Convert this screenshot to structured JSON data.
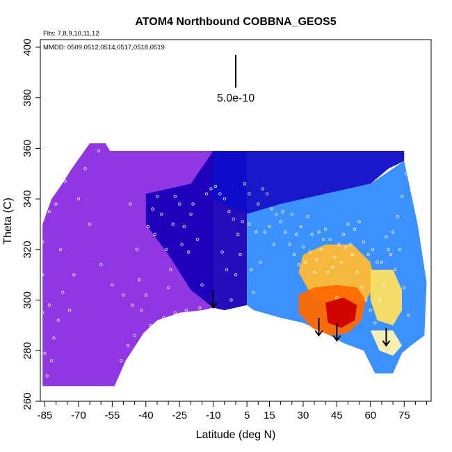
{
  "chart_data": {
    "type": "heatmap",
    "title": "ATOM4 Northbound COBBNA_GEOS5",
    "subtitle_flights": "Flts: 7,8,9,10,11,12",
    "subtitle_dates": "MMDD: 0509,0512,0514,0517,0518,0519",
    "xlabel": "Latitude (deg N)",
    "ylabel": "Theta (C)",
    "xlim": [
      -87,
      87
    ],
    "ylim": [
      260,
      403
    ],
    "x_ticks": [
      -85,
      -70,
      -55,
      -40,
      -25,
      -10,
      5,
      15,
      30,
      45,
      60,
      75
    ],
    "x_tick_labels": [
      "-85",
      "-70",
      "-55",
      "-40",
      "-25",
      "-10",
      "5",
      "15",
      "30",
      "45",
      "60",
      "75"
    ],
    "x_minor_ticks": [
      -80,
      -75,
      -65,
      -60,
      -50,
      -45,
      -35,
      -30,
      -20,
      -15,
      -5,
      0,
      10,
      20,
      25,
      35,
      40,
      50,
      55,
      65,
      70,
      80,
      85
    ],
    "y_ticks": [
      260,
      280,
      300,
      320,
      340,
      360,
      380,
      400
    ],
    "y_tick_labels": [
      "260",
      "280",
      "300",
      "320",
      "340",
      "360",
      "380",
      "400"
    ],
    "scale_bar": {
      "label": "5.0e-10",
      "x": 0,
      "y_bottom": 384,
      "y_top": 397
    },
    "grid": false,
    "colors": {
      "low": "#8a2be2",
      "mid_low": "#0000bb",
      "mid": "#2f8bff",
      "mid_high": "#ffd000",
      "high": "#d00000"
    },
    "field_regions": [
      {
        "name": "southern-background",
        "points": [
          [
            -86,
            330
          ],
          [
            -82,
            340
          ],
          [
            -78,
            345
          ],
          [
            -73,
            352
          ],
          [
            -65,
            362
          ],
          [
            -58,
            362
          ],
          [
            -56,
            359
          ],
          [
            -10,
            359
          ],
          [
            -10,
            297
          ],
          [
            -15,
            296
          ],
          [
            -25,
            295
          ],
          [
            -35,
            292
          ],
          [
            -41,
            287
          ],
          [
            -49,
            276
          ],
          [
            -54,
            266
          ],
          [
            -86,
            266
          ]
        ],
        "color": "#8a2be2"
      },
      {
        "name": "tropical-blue-core",
        "points": [
          [
            -40,
            342
          ],
          [
            -20,
            346
          ],
          [
            -10,
            359
          ],
          [
            5,
            359
          ],
          [
            5,
            298
          ],
          [
            -5,
            296
          ],
          [
            -10,
            297
          ],
          [
            -20,
            304
          ],
          [
            -30,
            318
          ],
          [
            -40,
            330
          ]
        ],
        "color": "#1a00b8"
      },
      {
        "name": "deep-blue-upper",
        "points": [
          [
            -10,
            359
          ],
          [
            75,
            359
          ],
          [
            75,
            355
          ],
          [
            68,
            352
          ],
          [
            60,
            346
          ],
          [
            40,
            342
          ],
          [
            20,
            338
          ],
          [
            5,
            334
          ],
          [
            -10,
            340
          ]
        ],
        "color": "#0d0dc8"
      },
      {
        "name": "northern-blue",
        "points": [
          [
            5,
            334
          ],
          [
            20,
            338
          ],
          [
            40,
            342
          ],
          [
            60,
            346
          ],
          [
            75,
            355
          ],
          [
            81,
            330
          ],
          [
            85,
            307
          ],
          [
            84,
            286
          ],
          [
            78,
            282
          ],
          [
            74,
            279
          ],
          [
            70,
            271
          ],
          [
            62,
            271
          ],
          [
            57,
            280
          ],
          [
            48,
            283
          ],
          [
            40,
            287
          ],
          [
            30,
            291
          ],
          [
            20,
            293
          ],
          [
            8,
            296
          ],
          [
            5,
            298
          ]
        ],
        "color": "#2f8bff"
      },
      {
        "name": "mid-yellow-band",
        "points": [
          [
            30,
            318
          ],
          [
            40,
            322
          ],
          [
            52,
            322
          ],
          [
            60,
            315
          ],
          [
            62,
            306
          ],
          [
            58,
            300
          ],
          [
            52,
            298
          ],
          [
            42,
            298
          ],
          [
            33,
            303
          ],
          [
            28,
            311
          ]
        ],
        "color": "#ffbb33"
      },
      {
        "name": "warm-core",
        "points": [
          [
            28,
            302
          ],
          [
            35,
            305
          ],
          [
            45,
            306
          ],
          [
            54,
            305
          ],
          [
            58,
            300
          ],
          [
            56,
            292
          ],
          [
            50,
            287
          ],
          [
            42,
            286
          ],
          [
            34,
            289
          ],
          [
            28,
            295
          ]
        ],
        "color": "#ff6a00"
      },
      {
        "name": "hot-core",
        "points": [
          [
            40,
            299
          ],
          [
            48,
            301
          ],
          [
            54,
            298
          ],
          [
            53,
            292
          ],
          [
            47,
            289
          ],
          [
            41,
            291
          ]
        ],
        "color": "#d00000"
      },
      {
        "name": "north-pale-band",
        "points": [
          [
            60,
            312
          ],
          [
            70,
            312
          ],
          [
            74,
            304
          ],
          [
            74,
            296
          ],
          [
            70,
            290
          ],
          [
            63,
            292
          ],
          [
            60,
            300
          ]
        ],
        "color": "#ffe060"
      },
      {
        "name": "north-light-tail",
        "points": [
          [
            60,
            288
          ],
          [
            70,
            288
          ],
          [
            74,
            282
          ],
          [
            70,
            278
          ],
          [
            64,
            280
          ]
        ],
        "color": "#fff4b0"
      }
    ],
    "vertical_arrows": [
      {
        "x": -10,
        "y_top": 304,
        "y_bottom": 297
      },
      {
        "x": 37,
        "y_top": 293,
        "y_bottom": 286
      },
      {
        "x": 45,
        "y_top": 291,
        "y_bottom": 284
      },
      {
        "x": 67,
        "y_top": 289,
        "y_bottom": 282
      }
    ],
    "observation_points": [
      [
        -86,
        323
      ],
      [
        -86,
        310
      ],
      [
        -86,
        295
      ],
      [
        -85,
        279
      ],
      [
        -84,
        270
      ],
      [
        -83,
        298
      ],
      [
        -83,
        335
      ],
      [
        -81,
        285
      ],
      [
        -80,
        338
      ],
      [
        -78,
        320
      ],
      [
        -76,
        347
      ],
      [
        -74,
        296
      ],
      [
        -61,
        359
      ],
      [
        -47,
        338
      ],
      [
        -46,
        298
      ],
      [
        -44,
        320
      ],
      [
        -43,
        308
      ],
      [
        -40,
        302
      ],
      [
        -39,
        329
      ],
      [
        -37,
        336
      ],
      [
        -35,
        341
      ],
      [
        -33,
        334
      ],
      [
        -31,
        320
      ],
      [
        -29,
        312
      ],
      [
        -27,
        341
      ],
      [
        -25,
        338
      ],
      [
        -23,
        329
      ],
      [
        -21,
        319
      ],
      [
        -19,
        338
      ],
      [
        -17,
        324
      ],
      [
        -15,
        306
      ],
      [
        -13,
        342
      ],
      [
        -11,
        344
      ],
      [
        -9,
        345
      ],
      [
        -7,
        342
      ],
      [
        -5,
        340
      ],
      [
        -3,
        335
      ],
      [
        -1,
        332
      ],
      [
        1,
        326
      ],
      [
        3,
        331
      ],
      [
        4,
        346
      ],
      [
        6,
        330
      ],
      [
        7,
        312
      ],
      [
        8,
        303
      ],
      [
        10,
        338
      ],
      [
        12,
        344
      ],
      [
        14,
        342
      ],
      [
        16,
        336
      ],
      [
        18,
        334
      ],
      [
        20,
        331
      ],
      [
        22,
        327
      ],
      [
        24,
        322
      ],
      [
        26,
        318
      ],
      [
        28,
        314
      ],
      [
        30,
        321
      ],
      [
        32,
        333
      ],
      [
        34,
        326
      ],
      [
        36,
        316
      ],
      [
        38,
        320
      ],
      [
        40,
        328
      ],
      [
        42,
        324
      ],
      [
        44,
        317
      ],
      [
        46,
        322
      ],
      [
        48,
        326
      ],
      [
        50,
        330
      ],
      [
        52,
        318
      ],
      [
        54,
        311
      ],
      [
        56,
        305
      ],
      [
        58,
        300
      ],
      [
        60,
        296
      ],
      [
        62,
        291
      ],
      [
        64,
        300
      ],
      [
        66,
        306
      ],
      [
        68,
        320
      ],
      [
        70,
        327
      ],
      [
        72,
        333
      ],
      [
        74,
        341
      ],
      [
        76,
        350
      ],
      [
        78,
        356
      ],
      [
        79,
        353
      ],
      [
        80,
        349
      ],
      [
        -60,
        314
      ],
      [
        -55,
        306
      ],
      [
        -50,
        302
      ],
      [
        -30,
        305
      ],
      [
        -20,
        334
      ],
      [
        -24,
        322
      ],
      [
        -28,
        330
      ],
      [
        -36,
        326
      ],
      [
        -42,
        296
      ],
      [
        0,
        310
      ],
      [
        2,
        318
      ],
      [
        9,
        327
      ],
      [
        11,
        315
      ],
      [
        13,
        327
      ],
      [
        15,
        329
      ],
      [
        17,
        322
      ],
      [
        21,
        335
      ],
      [
        25,
        334
      ],
      [
        27,
        326
      ],
      [
        29,
        329
      ],
      [
        31,
        315
      ],
      [
        33,
        319
      ],
      [
        35,
        311
      ],
      [
        37,
        327
      ],
      [
        39,
        324
      ],
      [
        41,
        311
      ],
      [
        43,
        313
      ],
      [
        45,
        301
      ],
      [
        47,
        315
      ],
      [
        49,
        321
      ],
      [
        51,
        322
      ],
      [
        53,
        328
      ],
      [
        55,
        331
      ],
      [
        57,
        323
      ],
      [
        59,
        318
      ],
      [
        61,
        320
      ],
      [
        63,
        315
      ],
      [
        65,
        315
      ],
      [
        67,
        325
      ],
      [
        69,
        318
      ],
      [
        71,
        312
      ],
      [
        73,
        320
      ],
      [
        75,
        305
      ],
      [
        77,
        294
      ],
      [
        -51,
        276
      ],
      [
        -48,
        282
      ],
      [
        -45,
        286
      ],
      [
        -38,
        290
      ],
      [
        -32,
        293
      ],
      [
        -27,
        295
      ],
      [
        -22,
        296
      ],
      [
        -16,
        297
      ],
      [
        -65,
        330
      ],
      [
        -70,
        340
      ],
      [
        -67,
        352
      ],
      [
        -72,
        310
      ],
      [
        -77,
        303
      ],
      [
        -79,
        292
      ],
      [
        -82,
        276
      ],
      [
        -84,
        342
      ],
      [
        -6,
        319
      ],
      [
        -4,
        312
      ],
      [
        -2,
        300
      ],
      [
        6,
        342
      ]
    ]
  }
}
